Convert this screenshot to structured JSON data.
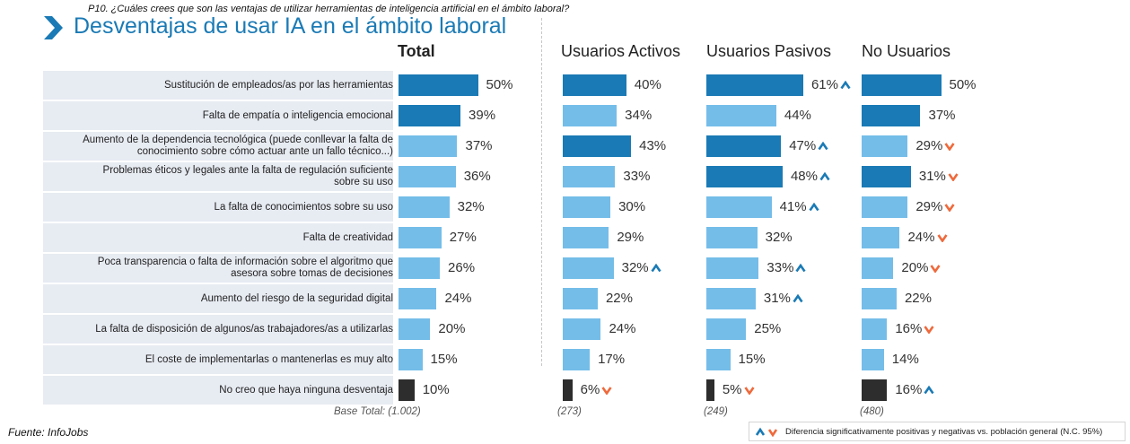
{
  "question": "P10. ¿Cuáles crees que son las ventajas de utilizar herramientas de inteligencia artificial en el ámbito laboral?",
  "title": "Desventajas de usar IA en el ámbito laboral",
  "source": "Fuente: InfoJobs",
  "legend_text": "Diferencia significativamente  positivas y negativas vs. población general (N.C. 95%)",
  "colors": {
    "title": "#1a7ab5",
    "dark_blue": "#1a7ab5",
    "light_blue": "#74bde9",
    "black": "#2d2d2d",
    "up_arrow": "#1a7ab5",
    "down_arrow": "#ee6a3c",
    "row_bg": "#e7ebf2"
  },
  "chart_data": {
    "type": "bar",
    "orientation": "horizontal",
    "categories": [
      "Sustitución de empleados/as por las herramientas",
      "Falta de empatía o inteligencia emocional",
      "Aumento de la dependencia tecnológica (puede conllevar la falta de conocimiento sobre cómo actuar ante un fallo técnico...)",
      "Problemas éticos y legales ante la falta de regulación suficiente sobre su uso",
      "La falta de conocimientos sobre su uso",
      "Falta de creatividad",
      "Poca transparencia o falta de información sobre el algoritmo que asesora sobre tomas de decisiones",
      "Aumento del riesgo de la seguridad digital",
      "La falta de disposición de algunos/as trabajadores/as a utilizarlas",
      "El coste de implementarlas o mantenerlas es muy alto",
      "No creo que haya ninguna desventaja"
    ],
    "category_lines": [
      [
        "Sustitución de empleados/as por las herramientas"
      ],
      [
        "Falta de empatía o inteligencia emocional"
      ],
      [
        "Aumento de la dependencia tecnológica (puede conllevar la falta de",
        "conocimiento sobre cómo actuar ante un fallo técnico...)"
      ],
      [
        "Problemas éticos y legales ante la falta de regulación suficiente",
        "sobre su uso"
      ],
      [
        "La falta de conocimientos sobre su uso"
      ],
      [
        "Falta de creatividad"
      ],
      [
        "Poca transparencia o falta de información sobre el algoritmo que",
        "asesora sobre tomas de decisiones"
      ],
      [
        "Aumento del riesgo de la seguridad digital"
      ],
      [
        "La falta de disposición de algunos/as trabajadores/as a utilizarlas"
      ],
      [
        "El coste de implementarlas o mantenerlas es muy alto"
      ],
      [
        "No creo que haya ninguna desventaja"
      ]
    ],
    "unit": "%",
    "series": [
      {
        "name": "Total",
        "base": "Base Total: (1.002)",
        "values": [
          50,
          39,
          37,
          36,
          32,
          27,
          26,
          24,
          20,
          15,
          10
        ],
        "shades": [
          "dark",
          "dark",
          "light",
          "light",
          "light",
          "light",
          "light",
          "light",
          "light",
          "light",
          "black"
        ],
        "sig": [
          null,
          null,
          null,
          null,
          null,
          null,
          null,
          null,
          null,
          null,
          null
        ]
      },
      {
        "name": "Usuarios Activos",
        "base": "(273)",
        "values": [
          40,
          34,
          43,
          33,
          30,
          29,
          32,
          22,
          24,
          17,
          6
        ],
        "shades": [
          "dark",
          "light",
          "dark",
          "light",
          "light",
          "light",
          "light",
          "light",
          "light",
          "light",
          "black"
        ],
        "sig": [
          null,
          null,
          null,
          null,
          null,
          null,
          "up",
          null,
          null,
          null,
          "down"
        ]
      },
      {
        "name": "Usuarios Pasivos",
        "base": "(249)",
        "values": [
          61,
          44,
          47,
          48,
          41,
          32,
          33,
          31,
          25,
          15,
          5
        ],
        "shades": [
          "dark",
          "light",
          "dark",
          "dark",
          "light",
          "light",
          "light",
          "light",
          "light",
          "light",
          "black"
        ],
        "sig": [
          "up",
          null,
          "up",
          "up",
          "up",
          null,
          "up",
          "up",
          null,
          null,
          "down"
        ]
      },
      {
        "name": "No Usuarios",
        "base": "(480)",
        "values": [
          50,
          37,
          29,
          31,
          29,
          24,
          20,
          22,
          16,
          14,
          16
        ],
        "shades": [
          "dark",
          "dark",
          "light",
          "dark",
          "light",
          "light",
          "light",
          "light",
          "light",
          "light",
          "black"
        ],
        "sig": [
          null,
          null,
          "down",
          "down",
          "down",
          "down",
          "down",
          null,
          "down",
          null,
          "up"
        ]
      }
    ]
  }
}
